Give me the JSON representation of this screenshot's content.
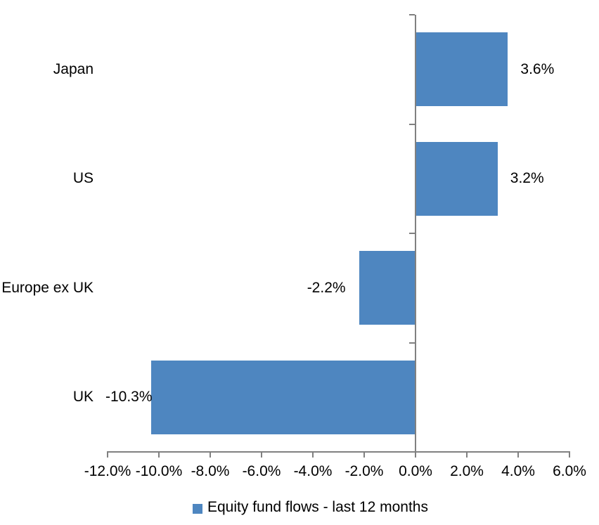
{
  "chart_data": {
    "type": "bar",
    "orientation": "horizontal",
    "title": "",
    "categories": [
      "Japan",
      "US",
      "Europe ex UK",
      "UK"
    ],
    "values": [
      3.6,
      3.2,
      -2.2,
      -10.3
    ],
    "data_labels": [
      "3.6%",
      "3.2%",
      "-2.2%",
      "-10.3%"
    ],
    "xlim": [
      -12,
      6
    ],
    "x_tick_step": 2,
    "x_tick_labels": [
      "-12.0%",
      "-10.0%",
      "-8.0%",
      "-6.0%",
      "-4.0%",
      "-2.0%",
      "0.0%",
      "2.0%",
      "4.0%",
      "6.0%"
    ],
    "grid": false,
    "legend_position": "bottom",
    "legend": [
      {
        "label": "Equity fund flows - last 12 months",
        "swatch_color": "#4E86C0"
      }
    ],
    "colors": {
      "bar": "#4E86C0",
      "axis": "#808080",
      "text": "#000000",
      "background": "#FFFFFF"
    }
  }
}
